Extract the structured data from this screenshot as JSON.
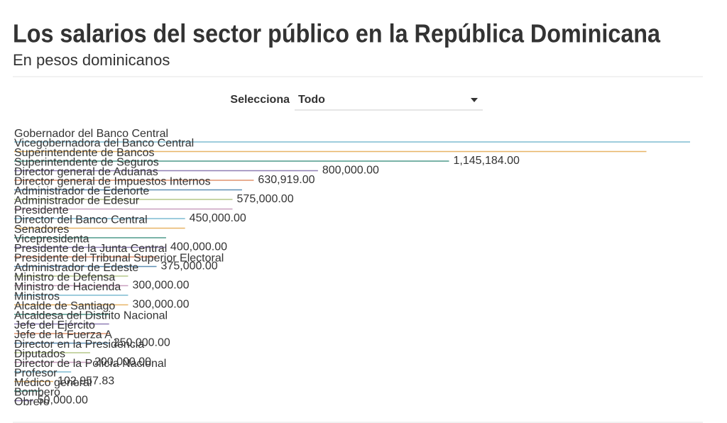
{
  "chart_data": {
    "type": "bar",
    "title": "Los salarios del sector público en la República Dominicana",
    "subtitle": "En pesos dominicanos",
    "filter": {
      "label": "Selecciona",
      "value": "Todo"
    },
    "categories": [
      "Gobernador del Banco Central",
      "Vicegobernadora del Banco Central",
      "Superintendente de Bancos",
      "Superintendente de Seguros",
      "Director general de Aduanas",
      "Director general de Impuestos Internos",
      "Administrador de Edenorte",
      "Administrador de Edesur",
      "Presidente",
      "Director del Banco Central",
      "Senadores",
      "Vicepresidenta",
      "Presidente de la Junta Central",
      "Presidente del Tribunal Superior Electoral",
      "Administrador de Edeste",
      "Ministro de Defensa",
      "Ministro de Hacienda",
      "Ministros",
      "Alcalde de Santiago",
      "Alcaldesa del Distrito Nacional",
      "Jefe del Ejército",
      "Jefe de la Fuerza A",
      "Director en la Presidencia",
      "Diputados",
      "Director de la Policía Nacional",
      "Profesor",
      "Médico general",
      "Bombero",
      "Obrero"
    ],
    "values": [
      1780000,
      1665000,
      1145184,
      800000,
      630919,
      600000,
      575000,
      575000,
      450000,
      450000,
      400000,
      400000,
      375000,
      375000,
      300000,
      300000,
      300000,
      300000,
      250000,
      250000,
      250000,
      250000,
      200000,
      200000,
      150000,
      102957.83,
      70000,
      50000,
      16000
    ],
    "value_labels": [
      null,
      null,
      "1,145,184.00",
      "800,000.00",
      "630,919.00",
      null,
      "575,000.00",
      null,
      "450,000.00",
      null,
      null,
      "400,000.00",
      null,
      "375,000.00",
      null,
      "300,000.00",
      null,
      "300,000.00",
      null,
      null,
      null,
      "250,000.00",
      null,
      "200,000.00",
      null,
      "102,957.83",
      null,
      "50,000.00",
      null
    ],
    "colors": [
      "#7fbcd2",
      "#e8b466",
      "#4e9a8c",
      "#8f7fb5",
      "#e0936f",
      "#5f8fb5",
      "#b5c98a",
      "#c9a0c0"
    ]
  }
}
